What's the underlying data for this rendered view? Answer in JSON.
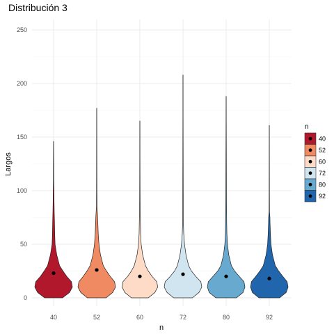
{
  "chart_data": {
    "type": "violin",
    "title": "Distribución 3",
    "xlabel": "n",
    "ylabel": "Largos",
    "categories": [
      "40",
      "52",
      "60",
      "72",
      "80",
      "92"
    ],
    "ylim": [
      0,
      250
    ],
    "yticks": [
      0,
      50,
      100,
      150,
      200,
      250
    ],
    "grid": true,
    "legend": {
      "title": "n",
      "position": "right",
      "entries": [
        "40",
        "52",
        "60",
        "72",
        "80",
        "92"
      ]
    },
    "series": [
      {
        "name": "40",
        "color": "#b2182b",
        "max": 146,
        "mean": 23,
        "profile": [
          [
            0,
            0.48
          ],
          [
            5,
            0.85
          ],
          [
            10,
            1.0
          ],
          [
            15,
            0.95
          ],
          [
            20,
            0.7
          ],
          [
            25,
            0.5
          ],
          [
            30,
            0.32
          ],
          [
            40,
            0.17
          ],
          [
            50,
            0.08
          ],
          [
            60,
            0.06
          ],
          [
            70,
            0.05
          ],
          [
            80,
            0.035
          ],
          [
            90,
            0.025
          ],
          [
            100,
            0.02
          ],
          [
            110,
            0.012
          ],
          [
            125,
            0.01
          ],
          [
            146,
            0.004
          ]
        ]
      },
      {
        "name": "52",
        "color": "#ef8a62",
        "max": 177,
        "mean": 26,
        "profile": [
          [
            0,
            0.5
          ],
          [
            5,
            0.85
          ],
          [
            10,
            1.0
          ],
          [
            15,
            0.95
          ],
          [
            20,
            0.72
          ],
          [
            25,
            0.52
          ],
          [
            30,
            0.35
          ],
          [
            40,
            0.2
          ],
          [
            50,
            0.12
          ],
          [
            60,
            0.08
          ],
          [
            70,
            0.06
          ],
          [
            78,
            0.04
          ],
          [
            85,
            0.015
          ],
          [
            100,
            0.01
          ],
          [
            120,
            0.008
          ],
          [
            150,
            0.006
          ],
          [
            177,
            0.004
          ]
        ]
      },
      {
        "name": "60",
        "color": "#fddbc7",
        "max": 165,
        "mean": 20,
        "profile": [
          [
            0,
            0.45
          ],
          [
            5,
            0.8
          ],
          [
            10,
            0.95
          ],
          [
            15,
            0.9
          ],
          [
            20,
            0.65
          ],
          [
            25,
            0.45
          ],
          [
            30,
            0.3
          ],
          [
            40,
            0.15
          ],
          [
            50,
            0.07
          ],
          [
            60,
            0.04
          ],
          [
            70,
            0.03
          ],
          [
            80,
            0.02
          ],
          [
            90,
            0.012
          ],
          [
            110,
            0.008
          ],
          [
            130,
            0.006
          ],
          [
            165,
            0.004
          ]
        ]
      },
      {
        "name": "72",
        "color": "#d1e5f0",
        "max": 208,
        "mean": 22,
        "profile": [
          [
            0,
            0.5
          ],
          [
            5,
            0.85
          ],
          [
            10,
            1.0
          ],
          [
            15,
            0.95
          ],
          [
            20,
            0.68
          ],
          [
            25,
            0.45
          ],
          [
            30,
            0.3
          ],
          [
            40,
            0.16
          ],
          [
            50,
            0.08
          ],
          [
            60,
            0.04
          ],
          [
            70,
            0.02
          ],
          [
            85,
            0.015
          ],
          [
            100,
            0.012
          ],
          [
            140,
            0.008
          ],
          [
            170,
            0.005
          ],
          [
            208,
            0.004
          ]
        ]
      },
      {
        "name": "80",
        "color": "#67a9cf",
        "max": 188,
        "mean": 20,
        "profile": [
          [
            0,
            0.55
          ],
          [
            5,
            0.9
          ],
          [
            10,
            1.0
          ],
          [
            15,
            0.95
          ],
          [
            20,
            0.7
          ],
          [
            25,
            0.45
          ],
          [
            30,
            0.28
          ],
          [
            40,
            0.14
          ],
          [
            50,
            0.07
          ],
          [
            60,
            0.04
          ],
          [
            70,
            0.03
          ],
          [
            90,
            0.02
          ],
          [
            110,
            0.015
          ],
          [
            140,
            0.01
          ],
          [
            165,
            0.006
          ],
          [
            188,
            0.004
          ]
        ]
      },
      {
        "name": "92",
        "color": "#2166ac",
        "max": 161,
        "mean": 18,
        "profile": [
          [
            0,
            0.55
          ],
          [
            5,
            0.9
          ],
          [
            10,
            1.0
          ],
          [
            15,
            0.95
          ],
          [
            20,
            0.72
          ],
          [
            25,
            0.5
          ],
          [
            30,
            0.32
          ],
          [
            40,
            0.17
          ],
          [
            50,
            0.09
          ],
          [
            60,
            0.06
          ],
          [
            70,
            0.04
          ],
          [
            75,
            0.035
          ],
          [
            80,
            0.012
          ],
          [
            100,
            0.008
          ],
          [
            130,
            0.006
          ],
          [
            161,
            0.004
          ]
        ]
      }
    ]
  }
}
